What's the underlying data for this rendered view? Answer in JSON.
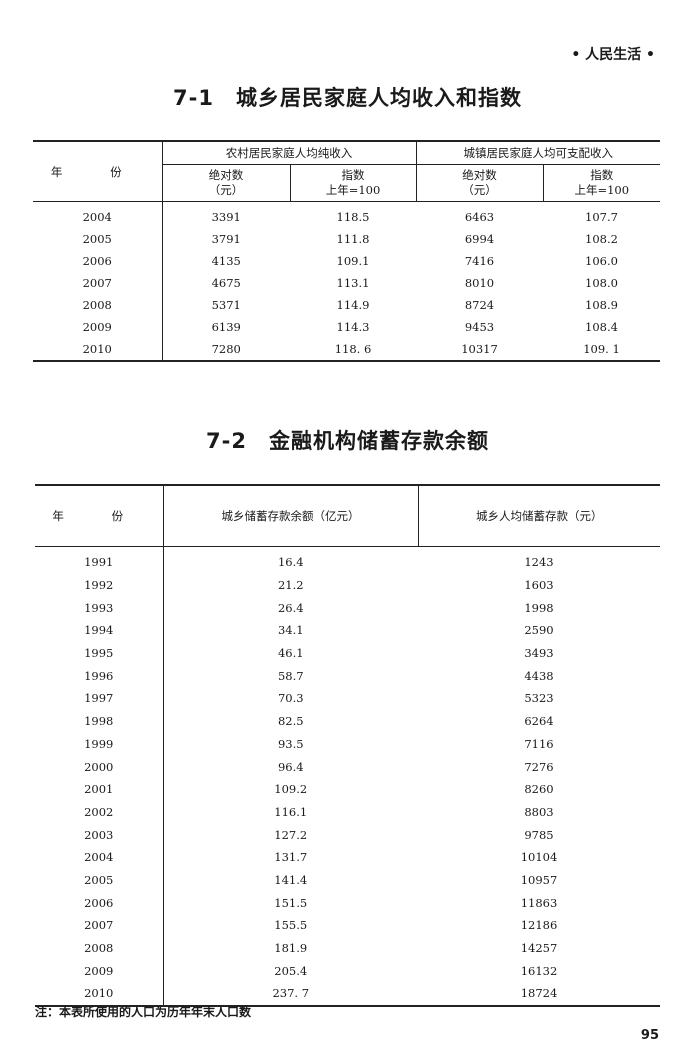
{
  "running_header": "• 人民生活 •",
  "table1": {
    "title": "7-1　城乡居民家庭人均收入和指数",
    "year_header": "年 份",
    "rural_group": "农村居民家庭人均纯收入",
    "urban_group": "城镇居民家庭人均可支配收入",
    "sub_abs": "绝对数",
    "sub_abs_unit": "（元）",
    "sub_idx": "指数",
    "sub_idx_unit": "上年=100",
    "rows": [
      [
        "2004",
        "3391",
        "118.5",
        "6463",
        "107.7"
      ],
      [
        "2005",
        "3791",
        "111.8",
        "6994",
        "108.2"
      ],
      [
        "2006",
        "4135",
        "109.1",
        "7416",
        "106.0"
      ],
      [
        "2007",
        "4675",
        "113.1",
        "8010",
        "108.0"
      ],
      [
        "2008",
        "5371",
        "114.9",
        "8724",
        "108.9"
      ],
      [
        "2009",
        "6139",
        "114.3",
        "9453",
        "108.4"
      ],
      [
        "2010",
        "7280",
        "118. 6",
        "10317",
        "109. 1"
      ]
    ]
  },
  "table2": {
    "title": "7-2　金融机构储蓄存款余额",
    "year_header": "年 份",
    "col1": "城乡储蓄存款余额（亿元）",
    "col2": "城乡人均储蓄存款（元）",
    "rows": [
      [
        "1991",
        "16.4",
        "1243"
      ],
      [
        "1992",
        "21.2",
        "1603"
      ],
      [
        "1993",
        "26.4",
        "1998"
      ],
      [
        "1994",
        "34.1",
        "2590"
      ],
      [
        "1995",
        "46.1",
        "3493"
      ],
      [
        "1996",
        "58.7",
        "4438"
      ],
      [
        "1997",
        "70.3",
        "5323"
      ],
      [
        "1998",
        "82.5",
        "6264"
      ],
      [
        "1999",
        "93.5",
        "7116"
      ],
      [
        "2000",
        "96.4",
        "7276"
      ],
      [
        "2001",
        "109.2",
        "8260"
      ],
      [
        "2002",
        "116.1",
        "8803"
      ],
      [
        "2003",
        "127.2",
        "9785"
      ],
      [
        "2004",
        "131.7",
        "10104"
      ],
      [
        "2005",
        "141.4",
        "10957"
      ],
      [
        "2006",
        "151.5",
        "11863"
      ],
      [
        "2007",
        "155.5",
        "12186"
      ],
      [
        "2008",
        "181.9",
        "14257"
      ],
      [
        "2009",
        "205.4",
        "16132"
      ],
      [
        "2010",
        "237. 7",
        "18724"
      ]
    ],
    "note": "注：本表所使用的人口为历年年末人口数"
  },
  "page_number": "95"
}
